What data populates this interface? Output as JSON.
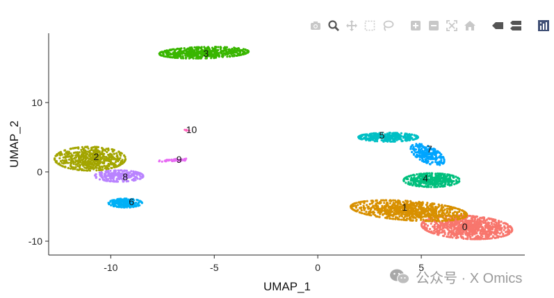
{
  "toolbar": {
    "buttons": [
      {
        "name": "camera-icon",
        "icon": "camera"
      },
      {
        "name": "zoom-icon",
        "icon": "zoom"
      },
      {
        "name": "pan-icon",
        "icon": "pan"
      },
      {
        "name": "box-select-icon",
        "icon": "box-select"
      },
      {
        "name": "lasso-select-icon",
        "icon": "lasso"
      },
      {
        "name": "zoom-in-icon",
        "icon": "plus"
      },
      {
        "name": "zoom-out-icon",
        "icon": "minus"
      },
      {
        "name": "autoscale-icon",
        "icon": "autoscale"
      },
      {
        "name": "reset-axes-icon",
        "icon": "home"
      },
      {
        "name": "hover-closest-icon",
        "icon": "hover-closest"
      },
      {
        "name": "hover-compare-icon",
        "icon": "hover-compare"
      },
      {
        "name": "plotly-logo-icon",
        "icon": "logo"
      }
    ],
    "icon_color": "#c8c8c8",
    "logo_color": "#3f4f75"
  },
  "chart_data": {
    "type": "scatter",
    "title": "",
    "xlabel": "UMAP_1",
    "ylabel": "UMAP_2",
    "xlim": [
      -13,
      10
    ],
    "ylim": [
      -12,
      20
    ],
    "xticks": [
      -10,
      -5,
      0,
      5
    ],
    "yticks": [
      -10,
      0,
      10
    ],
    "grid": false,
    "legend": "none",
    "clusters": [
      {
        "label": "0",
        "color": "#F8766D",
        "center": [
          7.2,
          -8.0
        ],
        "spread": [
          1.25,
          0.9
        ],
        "angle": -20,
        "count": 900,
        "label_pos": [
          7.1,
          -7.9
        ]
      },
      {
        "label": "1",
        "color": "#D89000",
        "center": [
          4.4,
          -5.6
        ],
        "spread": [
          1.6,
          0.75
        ],
        "angle": -15,
        "count": 850,
        "label_pos": [
          4.2,
          -5.1
        ]
      },
      {
        "label": "2",
        "color": "#A3A500",
        "center": [
          -11.0,
          1.9
        ],
        "spread": [
          0.95,
          0.95
        ],
        "angle": -25,
        "count": 600,
        "label_pos": [
          -10.7,
          2.2
        ]
      },
      {
        "label": "3",
        "color": "#39B600",
        "center": [
          -5.5,
          17.2
        ],
        "spread": [
          1.2,
          0.45
        ],
        "angle": 5,
        "count": 520,
        "label_pos": [
          -5.4,
          17.1
        ]
      },
      {
        "label": "4",
        "color": "#00BF7D",
        "center": [
          5.5,
          -1.2
        ],
        "spread": [
          0.75,
          0.55
        ],
        "angle": 0,
        "count": 420,
        "label_pos": [
          5.2,
          -0.9
        ]
      },
      {
        "label": "5",
        "color": "#00BFC4",
        "center": [
          3.4,
          5.0
        ],
        "spread": [
          0.8,
          0.35
        ],
        "angle": 0,
        "count": 330,
        "label_pos": [
          3.1,
          5.3
        ]
      },
      {
        "label": "6",
        "color": "#00B0F6",
        "center": [
          -9.3,
          -4.5
        ],
        "spread": [
          0.45,
          0.35
        ],
        "angle": 0,
        "count": 190,
        "label_pos": [
          -9.0,
          -4.3
        ]
      },
      {
        "label": "7",
        "color": "#00A5FF",
        "center": [
          5.3,
          2.5
        ],
        "spread": [
          0.35,
          0.9
        ],
        "angle": 20,
        "count": 230,
        "label_pos": [
          5.4,
          3.3
        ]
      },
      {
        "label": "8",
        "color": "#B983FF",
        "center": [
          -9.6,
          -0.6
        ],
        "spread": [
          0.65,
          0.45
        ],
        "angle": 0,
        "count": 260,
        "label_pos": [
          -9.3,
          -0.7
        ]
      },
      {
        "label": "9",
        "color": "#E76BF3",
        "center": [
          -6.9,
          1.7
        ],
        "spread": [
          0.45,
          0.1
        ],
        "angle": 10,
        "count": 45,
        "label_pos": [
          -6.7,
          1.8
        ]
      },
      {
        "label": "10",
        "color": "#FF62BC",
        "center": [
          -6.3,
          6.0
        ],
        "spread": [
          0.08,
          0.08
        ],
        "angle": 0,
        "count": 6,
        "label_pos": [
          -6.1,
          6.1
        ]
      }
    ]
  },
  "watermark": {
    "text": "公众号 · X Omics"
  }
}
